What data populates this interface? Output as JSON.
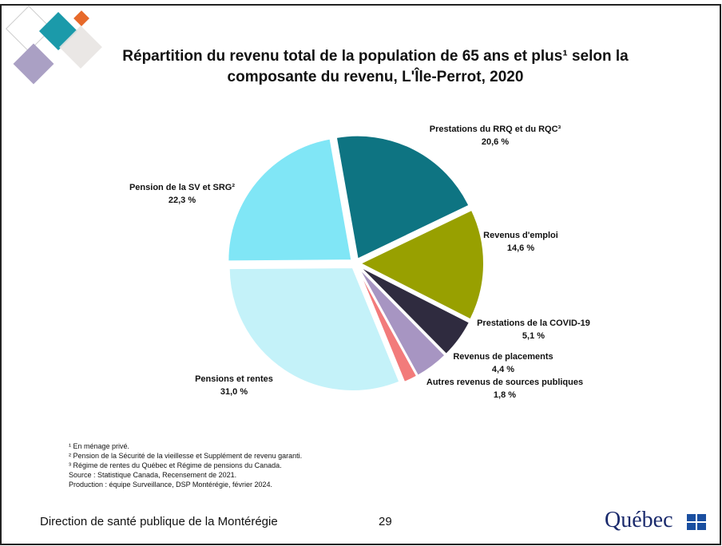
{
  "chart_data": {
    "type": "pie",
    "title": "Répartition du revenu total de la population de 65 ans et plus¹ selon la composante du revenu, L'Île-Perrot, 2020",
    "categories": [
      "Prestations du RRQ et du RQC³",
      "Revenus d'emploi",
      "Prestations de la COVID-19",
      "Revenus de placements",
      "Autres revenus de sources publiques",
      "Pensions et rentes",
      "Pension de la SV et SRG²"
    ],
    "values": [
      20.6,
      14.6,
      5.1,
      4.4,
      1.8,
      31.0,
      22.3
    ],
    "value_labels": [
      "20,6 %",
      "14,6 %",
      "5,1 %",
      "4,4 %",
      "1,8 %",
      "31,0 %",
      "22,3 %"
    ],
    "colors": [
      "#0e7482",
      "#98a000",
      "#2f2b3f",
      "#a795c2",
      "#f27b7b",
      "#c4f2f9",
      "#80e6f6"
    ]
  },
  "footnotes": [
    "¹ En ménage privé.",
    "² Pension de la Sécurité de la vieillesse et Supplément de revenu garanti.",
    "³ Régime de rentes du Québec et Régime de pensions du Canada.",
    "Source : Statistique Canada, Recensement de 2021.",
    "Production : équipe Surveillance, DSP Montérégie, février 2024."
  ],
  "footer": {
    "organization": "Direction de santé publique de la Montérégie",
    "page": "29",
    "logo": "Québec"
  }
}
